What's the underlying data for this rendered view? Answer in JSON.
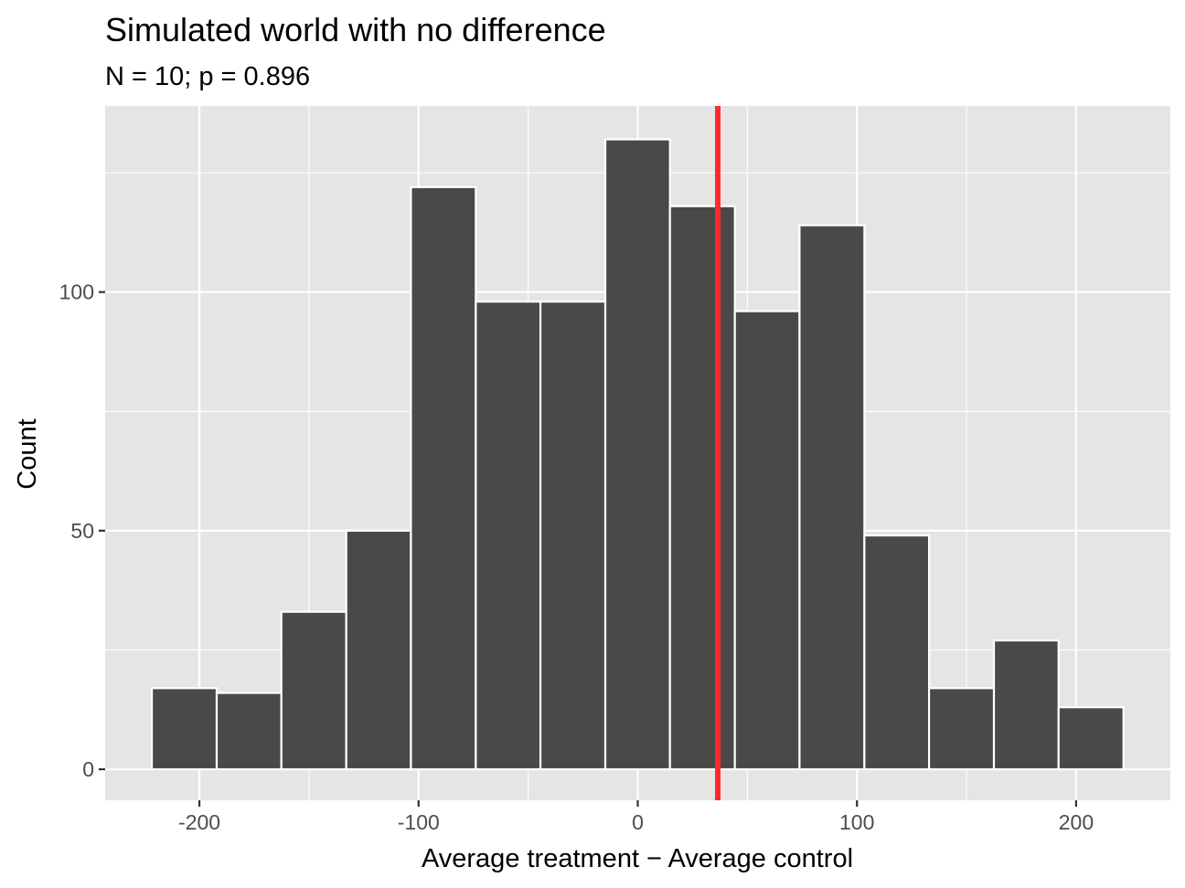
{
  "chart_data": {
    "type": "bar",
    "title": "Simulated world with no difference",
    "subtitle": "N = 10; p = 0.896",
    "xlabel": "Average treatment − Average control",
    "ylabel": "Count",
    "xlim": [
      -243,
      243
    ],
    "ylim": [
      -6.5,
      139
    ],
    "x_ticks": [
      -200,
      -100,
      0,
      100,
      200
    ],
    "x_tick_labels": [
      "-200",
      "-100",
      "0",
      "100",
      "200"
    ],
    "y_ticks": [
      0,
      50,
      100
    ],
    "y_tick_labels": [
      "0",
      "50",
      "100"
    ],
    "x_minor_ticks": [
      -150,
      -50,
      50,
      150
    ],
    "y_minor_ticks": [
      25,
      75,
      125
    ],
    "bin_width": 29.55,
    "bins": [
      {
        "x_start": -221.7,
        "x_end": -192.1,
        "count": 17
      },
      {
        "x_start": -192.1,
        "x_end": -162.6,
        "count": 16
      },
      {
        "x_start": -162.6,
        "x_end": -133.0,
        "count": 33
      },
      {
        "x_start": -133.0,
        "x_end": -103.5,
        "count": 50
      },
      {
        "x_start": -103.5,
        "x_end": -73.9,
        "count": 122
      },
      {
        "x_start": -73.9,
        "x_end": -44.4,
        "count": 98
      },
      {
        "x_start": -44.4,
        "x_end": -14.8,
        "count": 98
      },
      {
        "x_start": -14.8,
        "x_end": 14.7,
        "count": 132
      },
      {
        "x_start": 14.7,
        "x_end": 44.3,
        "count": 118
      },
      {
        "x_start": 44.3,
        "x_end": 73.8,
        "count": 96
      },
      {
        "x_start": 73.8,
        "x_end": 103.4,
        "count": 114
      },
      {
        "x_start": 103.4,
        "x_end": 132.9,
        "count": 49
      },
      {
        "x_start": 132.9,
        "x_end": 162.5,
        "count": 17
      },
      {
        "x_start": 162.5,
        "x_end": 192.0,
        "count": 27
      },
      {
        "x_start": 192.0,
        "x_end": 221.6,
        "count": 13
      }
    ],
    "reference_line": {
      "x": 36.5,
      "color": "#ff2a2a"
    },
    "colors": {
      "panel_background": "#e5e5e5",
      "grid": "#ffffff",
      "bar_fill": "#494949",
      "bar_outline": "#ffffff",
      "tick_text": "#4d4d4d",
      "tick_mark": "#333333"
    },
    "grid": true,
    "legend": "none"
  }
}
